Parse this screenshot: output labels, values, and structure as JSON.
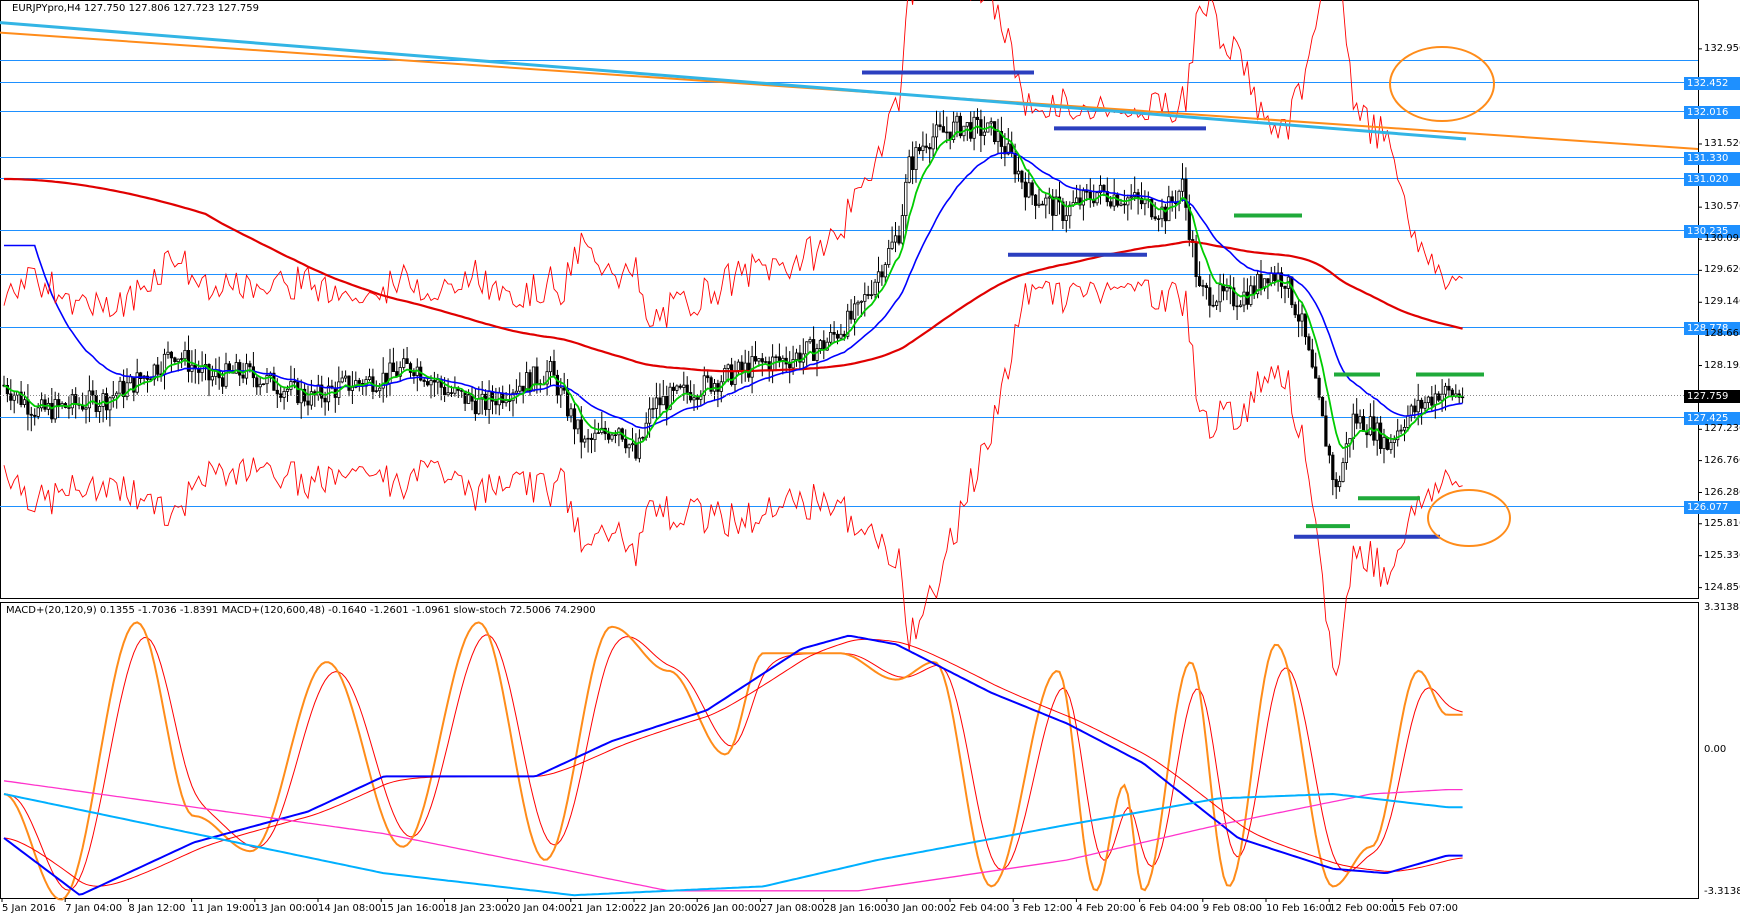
{
  "header": {
    "symbol_line": "EURJPYpro,H4  127.750 127.806 127.723 127.759",
    "indicator_line": "MACD+(20,120,9) 0.1355 -1.7036 -1.8391  MACD+(120,600,48) -0.1640 -1.2601 -1.0961  slow-stoch 72.5006 74.2900"
  },
  "colors": {
    "bg": "#ffffff",
    "grid_h": "#1e90ff",
    "price_tag": "#1e90ff",
    "current_tag": "#000000",
    "candle": "#000000",
    "ma_fast": "#00cc00",
    "ma_blue": "#0000ff",
    "ma_red_thick": "#e00000",
    "band_red": "#ff0000",
    "trend_orange": "#ff8c1a",
    "trend_cyan": "#33b5e5",
    "mark_blue": "#2b3fbf",
    "mark_green": "#1faa3a",
    "circle_orange": "#ff8c1a",
    "stoch": "#ff8c1a",
    "stoch_sig": "#ff0000",
    "macd1": "#0000ff",
    "macd1_sig": "#ff0000",
    "macd2": "#00b0ff",
    "macd2_sig": "#ff33cc"
  },
  "price_axis": {
    "ticks": [
      "132.956",
      "131.526",
      "130.576",
      "130.095",
      "129.626",
      "129.146",
      "128.666",
      "128.195",
      "127.236",
      "126.766",
      "126.286",
      "125.816",
      "125.336",
      "124.856"
    ],
    "levels": [
      {
        "price": 132.79,
        "label": ""
      },
      {
        "price": 132.452,
        "label": "132.452"
      },
      {
        "price": 132.016,
        "label": "132.016"
      },
      {
        "price": 131.33,
        "label": "131.330"
      },
      {
        "price": 131.02,
        "label": "131.020"
      },
      {
        "price": 130.235,
        "label": "130.235"
      },
      {
        "price": 129.57,
        "label": ""
      },
      {
        "price": 128.778,
        "label": "128.778"
      },
      {
        "price": 127.425,
        "label": "127.425"
      },
      {
        "price": 126.077,
        "label": "126.077"
      }
    ],
    "current": {
      "price": 127.759,
      "label": "127.759"
    },
    "range": [
      124.7,
      133.45
    ]
  },
  "macd_axis": {
    "ticks": [
      "3.3138",
      "0.00",
      "-3.3138"
    ]
  },
  "time_axis": {
    "labels": [
      "5 Jan 2016",
      "7 Jan 04:00",
      "8 Jan 12:00",
      "11 Jan 19:00",
      "13 Jan 00:00",
      "14 Jan 08:00",
      "15 Jan 16:00",
      "18 Jan 23:00",
      "20 Jan 04:00",
      "21 Jan 12:00",
      "22 Jan 20:00",
      "26 Jan 00:00",
      "27 Jan 08:00",
      "28 Jan 16:00",
      "30 Jan 00:00",
      "2 Feb 04:00",
      "3 Feb 12:00",
      "4 Feb 20:00",
      "6 Feb 04:00",
      "9 Feb 08:00",
      "10 Feb 16:00",
      "12 Feb 00:00",
      "15 Feb 07:00"
    ]
  },
  "chart_data": {
    "type": "line",
    "title": "",
    "xlabel": "",
    "ylabel": "",
    "ylim": [
      124.7,
      133.45
    ],
    "close_anchors": [
      [
        0,
        127.9
      ],
      [
        10,
        127.5
      ],
      [
        20,
        127.6
      ],
      [
        30,
        127.7
      ],
      [
        40,
        128.0
      ],
      [
        50,
        128.4
      ],
      [
        60,
        128.0
      ],
      [
        70,
        128.1
      ],
      [
        80,
        127.9
      ],
      [
        90,
        127.7
      ],
      [
        100,
        127.9
      ],
      [
        110,
        128.0
      ],
      [
        120,
        128.2
      ],
      [
        130,
        127.8
      ],
      [
        140,
        127.6
      ],
      [
        150,
        127.9
      ],
      [
        160,
        128.1
      ],
      [
        170,
        127.0
      ],
      [
        180,
        127.3
      ],
      [
        185,
        126.8
      ],
      [
        190,
        127.6
      ],
      [
        200,
        127.8
      ],
      [
        210,
        128.0
      ],
      [
        220,
        128.2
      ],
      [
        230,
        128.3
      ],
      [
        240,
        128.5
      ],
      [
        250,
        129.0
      ],
      [
        255,
        129.5
      ],
      [
        258,
        129.8
      ],
      [
        262,
        130.2
      ],
      [
        265,
        131.2
      ],
      [
        270,
        131.6
      ],
      [
        280,
        131.8
      ],
      [
        290,
        131.7
      ],
      [
        295,
        131.3
      ],
      [
        300,
        130.8
      ],
      [
        310,
        130.5
      ],
      [
        320,
        130.8
      ],
      [
        330,
        130.7
      ],
      [
        340,
        130.5
      ],
      [
        345,
        130.9
      ],
      [
        350,
        129.3
      ],
      [
        360,
        129.2
      ],
      [
        365,
        129.3
      ],
      [
        370,
        129.6
      ],
      [
        375,
        129.5
      ],
      [
        380,
        128.8
      ],
      [
        385,
        127.6
      ],
      [
        390,
        126.3
      ],
      [
        395,
        127.4
      ],
      [
        400,
        127.3
      ],
      [
        405,
        127.0
      ],
      [
        410,
        127.4
      ],
      [
        415,
        127.6
      ],
      [
        420,
        127.8
      ],
      [
        425,
        127.76
      ]
    ],
    "overlays": {
      "resistance_trend": "orange line from top-left to right edge",
      "channel_trend": "cyan line from top-left to 15 Feb"
    }
  }
}
